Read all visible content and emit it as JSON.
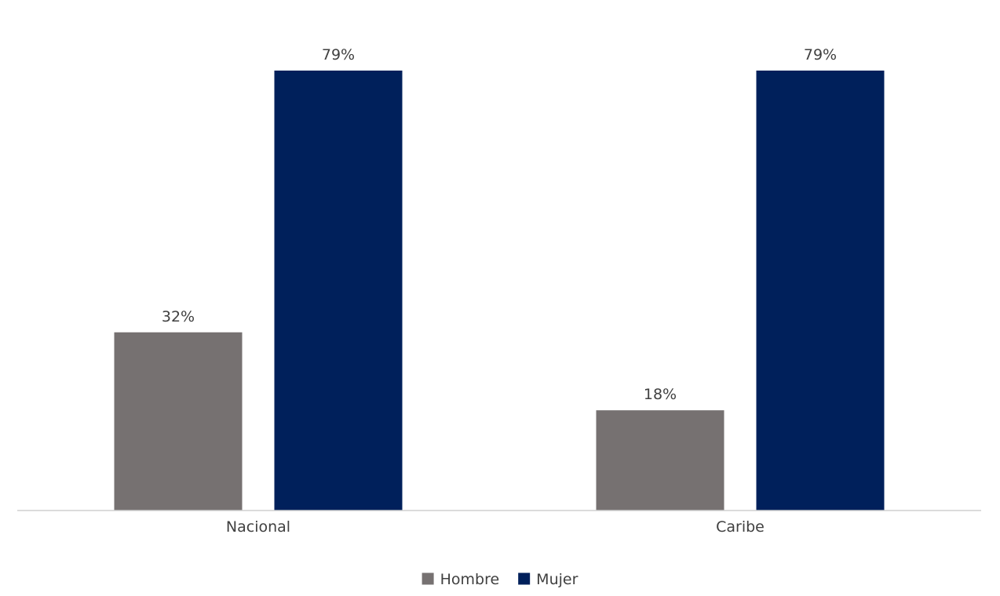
{
  "chart_data": {
    "type": "bar",
    "categories": [
      "Nacional",
      "Caribe"
    ],
    "series": [
      {
        "name": "Hombre",
        "values": [
          32,
          18
        ],
        "labels": [
          "32%",
          "18%"
        ],
        "color": "#767171"
      },
      {
        "name": "Mujer",
        "values": [
          79,
          79
        ],
        "labels": [
          "79%",
          "79%"
        ],
        "color": "#00205B"
      }
    ],
    "ylim": [
      0,
      79
    ],
    "grid": false,
    "legend": "bottom-center"
  }
}
